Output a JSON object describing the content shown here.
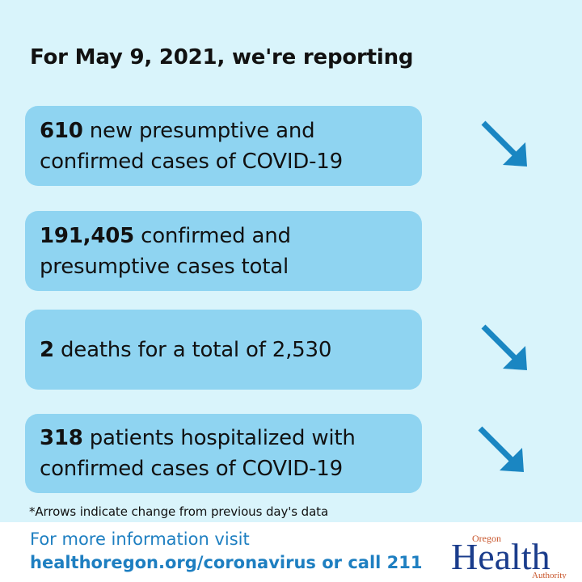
{
  "header": {
    "title": "For May 9, 2021, we're reporting"
  },
  "cards": [
    {
      "number": "610",
      "text_line1": " new presumptive and",
      "text_line2": "confirmed cases of COVID-19",
      "trend": "down"
    },
    {
      "number": "191,405",
      "text_line1": " confirmed and",
      "text_line2": "presumptive cases total",
      "trend": "none"
    },
    {
      "number": "2",
      "text_line1": " deaths for a total of 2,530",
      "text_line2": "",
      "trend": "down"
    },
    {
      "number": "318",
      "text_line1": " patients hospitalized with",
      "text_line2": "confirmed cases of COVID-19",
      "trend": "down"
    }
  ],
  "footnote": "*Arrows indicate change from previous day's data",
  "footer": {
    "line1": "For more information visit",
    "line2": "healthoregon.org/coronavirus or call 211"
  },
  "logo": {
    "small_top": "Oregon",
    "main": "Health",
    "small_bottom": "Authority"
  },
  "colors": {
    "background": "#d9f4fb",
    "card": "#8fd4f1",
    "arrow": "#1a86c2",
    "footer_text": "#1e7fc1"
  },
  "icons": {
    "trend_down": "arrow-down-right-icon"
  }
}
